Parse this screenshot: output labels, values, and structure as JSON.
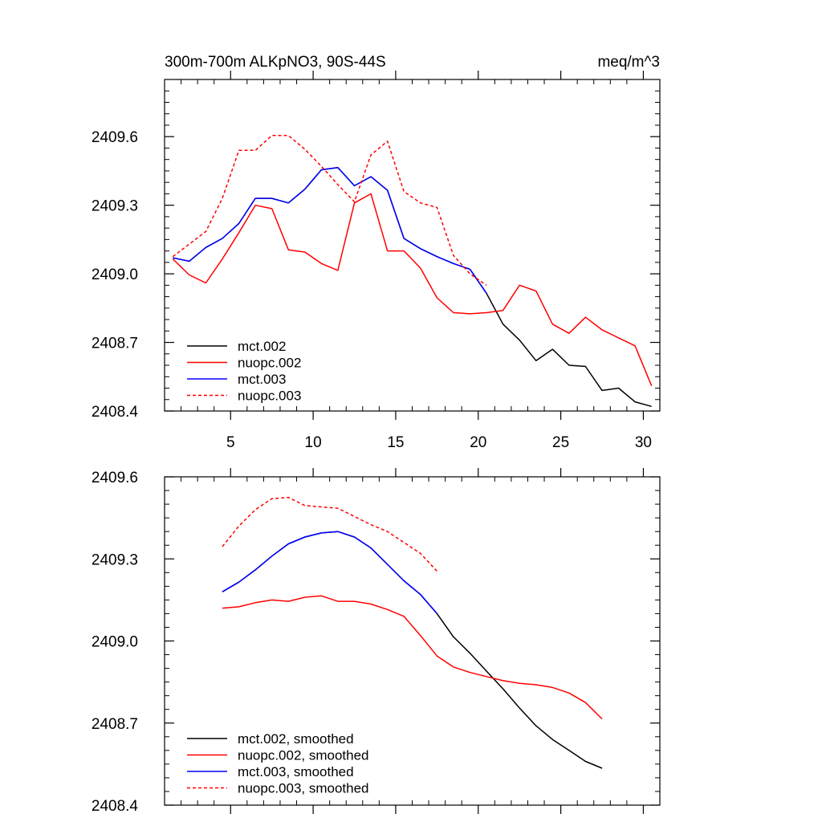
{
  "chart_data": [
    {
      "type": "line",
      "title": "300m-700m ALKpNO3, 90S-44S",
      "units": "meq/m^3",
      "xlim": [
        1,
        31
      ],
      "ylim": [
        2408.4,
        2409.85
      ],
      "xticks": [
        5,
        10,
        15,
        20,
        25,
        30
      ],
      "yticks": [
        2408.4,
        2408.7,
        2409.0,
        2409.3,
        2409.6
      ],
      "xtick_labels": [
        "5",
        "10",
        "15",
        "20",
        "25",
        "30"
      ],
      "ytick_labels": [
        "2408.4",
        "2408.7",
        "2409.0",
        "2409.3",
        "2409.6"
      ],
      "grid": false,
      "legend_position": "bottom-left",
      "series": [
        {
          "name": "mct.002",
          "color": "#000000",
          "dash": "solid",
          "x": [
            1.5,
            2.5,
            3.5,
            4.5,
            5.5,
            6.5,
            7.5,
            8.5,
            9.5,
            10.5,
            11.5,
            12.5,
            13.5,
            14.5,
            15.5,
            16.5,
            17.5,
            18.5,
            19.5,
            20.5,
            21.5,
            22.5,
            23.5,
            24.5,
            25.5,
            26.5,
            27.5,
            28.5,
            29.5,
            30.5
          ],
          "values": [
            2409.07,
            2409.055,
            2409.115,
            2409.155,
            2409.22,
            2409.33,
            2409.33,
            2409.31,
            2409.37,
            2409.455,
            2409.465,
            2409.385,
            2409.425,
            2409.365,
            2409.155,
            2409.11,
            2409.075,
            2409.045,
            2409.02,
            2408.915,
            2408.78,
            2408.71,
            2408.62,
            2408.67,
            2408.6,
            2408.595,
            2408.49,
            2408.5,
            2408.44,
            2408.42
          ]
        },
        {
          "name": "nuopc.002",
          "color": "#ff0000",
          "dash": "solid",
          "x": [
            1.5,
            2.5,
            3.5,
            4.5,
            5.5,
            6.5,
            7.5,
            8.5,
            9.5,
            10.5,
            11.5,
            12.5,
            13.5,
            14.5,
            15.5,
            16.5,
            17.5,
            18.5,
            19.5,
            20.5,
            21.5,
            22.5,
            23.5,
            24.5,
            25.5,
            26.5,
            27.5,
            28.5,
            29.5,
            30.5
          ],
          "values": [
            2409.065,
            2408.995,
            2408.96,
            2409.065,
            2409.18,
            2409.3,
            2409.285,
            2409.105,
            2409.095,
            2409.045,
            2409.015,
            2409.31,
            2409.35,
            2409.1,
            2409.1,
            2409.025,
            2408.895,
            2408.83,
            2408.825,
            2408.83,
            2408.84,
            2408.95,
            2408.925,
            2408.78,
            2408.74,
            2408.81,
            2408.755,
            2408.72,
            2408.685,
            2408.51
          ]
        },
        {
          "name": "mct.003",
          "color": "#0000ff",
          "dash": "solid",
          "x": [
            1.5,
            2.5,
            3.5,
            4.5,
            5.5,
            6.5,
            7.5,
            8.5,
            9.5,
            10.5,
            11.5,
            12.5,
            13.5,
            14.5,
            15.5,
            16.5,
            17.5,
            18.5,
            19.5,
            20.5
          ],
          "values": [
            2409.07,
            2409.055,
            2409.115,
            2409.155,
            2409.22,
            2409.33,
            2409.33,
            2409.31,
            2409.37,
            2409.455,
            2409.465,
            2409.385,
            2409.425,
            2409.365,
            2409.155,
            2409.11,
            2409.075,
            2409.045,
            2409.02,
            2408.915
          ]
        },
        {
          "name": "nuopc.003",
          "color": "#ff0000",
          "dash": "dashed",
          "x": [
            1.5,
            2.5,
            3.5,
            4.5,
            5.5,
            6.5,
            7.5,
            8.5,
            9.5,
            10.5,
            11.5,
            12.5,
            13.5,
            14.5,
            15.5,
            16.5,
            17.5,
            18.5,
            19.5,
            20.5
          ],
          "values": [
            2409.075,
            2409.13,
            2409.185,
            2409.33,
            2409.54,
            2409.54,
            2409.605,
            2409.605,
            2409.545,
            2409.47,
            2409.39,
            2409.315,
            2409.52,
            2409.58,
            2409.36,
            2409.31,
            2409.29,
            2409.08,
            2409.0,
            2408.95
          ]
        }
      ]
    },
    {
      "type": "line",
      "title": "",
      "units": "",
      "xlim": [
        1,
        31
      ],
      "ylim": [
        2408.4,
        2409.6
      ],
      "xticks": [
        5,
        10,
        15,
        20,
        25,
        30
      ],
      "yticks": [
        2408.4,
        2408.7,
        2409.0,
        2409.3,
        2409.6
      ],
      "xtick_labels": [],
      "ytick_labels": [
        "2408.4",
        "2408.7",
        "2409.0",
        "2409.3",
        "2409.6"
      ],
      "grid": false,
      "legend_position": "bottom-left",
      "series": [
        {
          "name": "mct.002, smoothed",
          "color": "#000000",
          "dash": "solid",
          "x": [
            4.5,
            5.5,
            6.5,
            7.5,
            8.5,
            9.5,
            10.5,
            11.5,
            12.5,
            13.5,
            14.5,
            15.5,
            16.5,
            17.5,
            18.5,
            19.5,
            20.5,
            21.5,
            22.5,
            23.5,
            24.5,
            25.5,
            26.5,
            27.5
          ],
          "values": [
            2409.18,
            2409.215,
            2409.26,
            2409.31,
            2409.355,
            2409.38,
            2409.395,
            2409.4,
            2409.38,
            2409.34,
            2409.28,
            2409.22,
            2409.17,
            2409.1,
            2409.015,
            2408.955,
            2408.89,
            2408.825,
            2408.755,
            2408.69,
            2408.64,
            2408.6,
            2408.56,
            2408.535
          ]
        },
        {
          "name": "nuopc.002, smoothed",
          "color": "#ff0000",
          "dash": "solid",
          "x": [
            4.5,
            5.5,
            6.5,
            7.5,
            8.5,
            9.5,
            10.5,
            11.5,
            12.5,
            13.5,
            14.5,
            15.5,
            16.5,
            17.5,
            18.5,
            19.5,
            20.5,
            21.5,
            22.5,
            23.5,
            24.5,
            25.5,
            26.5,
            27.5
          ],
          "values": [
            2409.12,
            2409.125,
            2409.14,
            2409.15,
            2409.145,
            2409.16,
            2409.165,
            2409.145,
            2409.145,
            2409.135,
            2409.115,
            2409.09,
            2409.02,
            2408.945,
            2408.905,
            2408.885,
            2408.87,
            2408.855,
            2408.845,
            2408.84,
            2408.83,
            2408.81,
            2408.775,
            2408.715
          ]
        },
        {
          "name": "mct.003, smoothed",
          "color": "#0000ff",
          "dash": "solid",
          "x": [
            4.5,
            5.5,
            6.5,
            7.5,
            8.5,
            9.5,
            10.5,
            11.5,
            12.5,
            13.5,
            14.5,
            15.5,
            16.5,
            17.5
          ],
          "values": [
            2409.18,
            2409.215,
            2409.26,
            2409.31,
            2409.355,
            2409.38,
            2409.395,
            2409.4,
            2409.38,
            2409.34,
            2409.28,
            2409.22,
            2409.17,
            2409.1
          ]
        },
        {
          "name": "nuopc.003, smoothed",
          "color": "#ff0000",
          "dash": "dashed",
          "x": [
            4.5,
            5.5,
            6.5,
            7.5,
            8.5,
            9.5,
            10.5,
            11.5,
            12.5,
            13.5,
            14.5,
            15.5,
            16.5,
            17.5
          ],
          "values": [
            2409.345,
            2409.42,
            2409.48,
            2409.52,
            2409.525,
            2409.495,
            2409.49,
            2409.485,
            2409.455,
            2409.425,
            2409.4,
            2409.36,
            2409.32,
            2409.255
          ]
        }
      ]
    }
  ]
}
